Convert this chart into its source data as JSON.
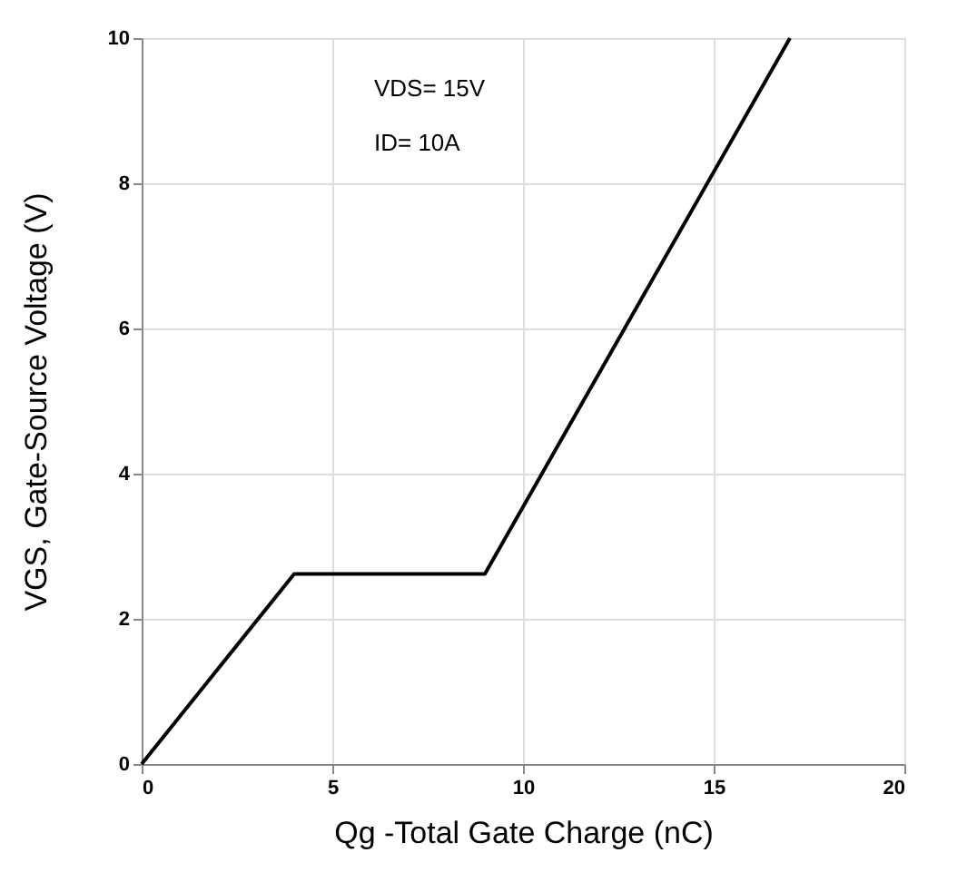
{
  "chart_data": {
    "type": "line",
    "xlabel": "Qg -Total Gate Charge (nC)",
    "ylabel": "VGS, Gate-Source Voltage (V)",
    "annotations": [
      "VDS= 15V",
      "ID= 10A"
    ],
    "series": [
      {
        "x": [
          0,
          4,
          9,
          17
        ],
        "values": [
          0,
          2.62,
          2.62,
          10
        ],
        "color": "#000000"
      }
    ],
    "xlim": [
      0,
      20
    ],
    "xticks": [
      0,
      5,
      10,
      15,
      20
    ],
    "ylim": [
      0,
      10
    ],
    "yticks": [
      0,
      2,
      4,
      6,
      8,
      10
    ],
    "grid": true,
    "marker": "none",
    "line_style": "solid"
  }
}
